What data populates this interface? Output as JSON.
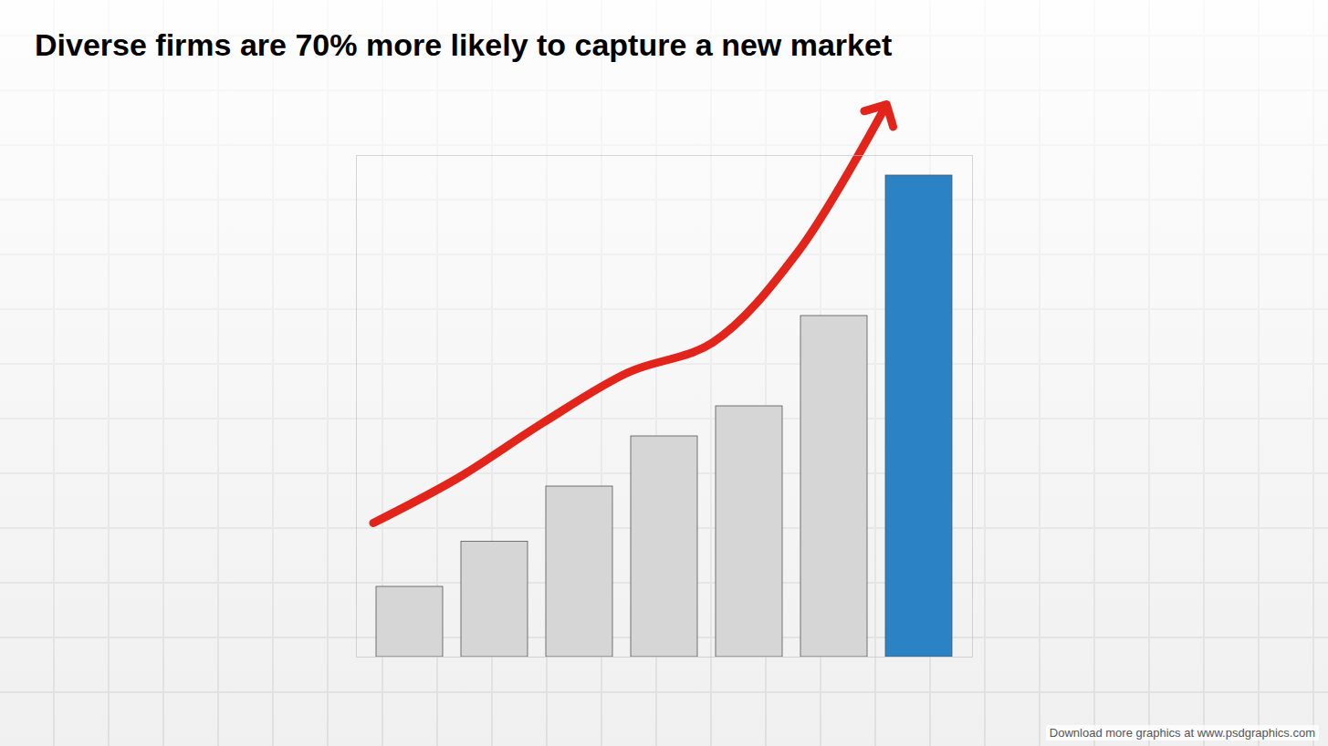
{
  "chart_data": {
    "type": "bar",
    "title": "Diverse firms are 70% more likely to capture a new market",
    "categories": [
      null,
      null,
      null,
      null,
      null,
      null,
      null
    ],
    "values": [
      70,
      115,
      170,
      220,
      250,
      340,
      480
    ],
    "colors": [
      "#d6d6d6",
      "#d6d6d6",
      "#d6d6d6",
      "#d6d6d6",
      "#d6d6d6",
      "#d6d6d6",
      "#2b83c6"
    ],
    "ylim": [
      0,
      500
    ],
    "tick_labels": false,
    "annotations": [
      "Download more graphics at www.psdgraphics.com"
    ]
  }
}
